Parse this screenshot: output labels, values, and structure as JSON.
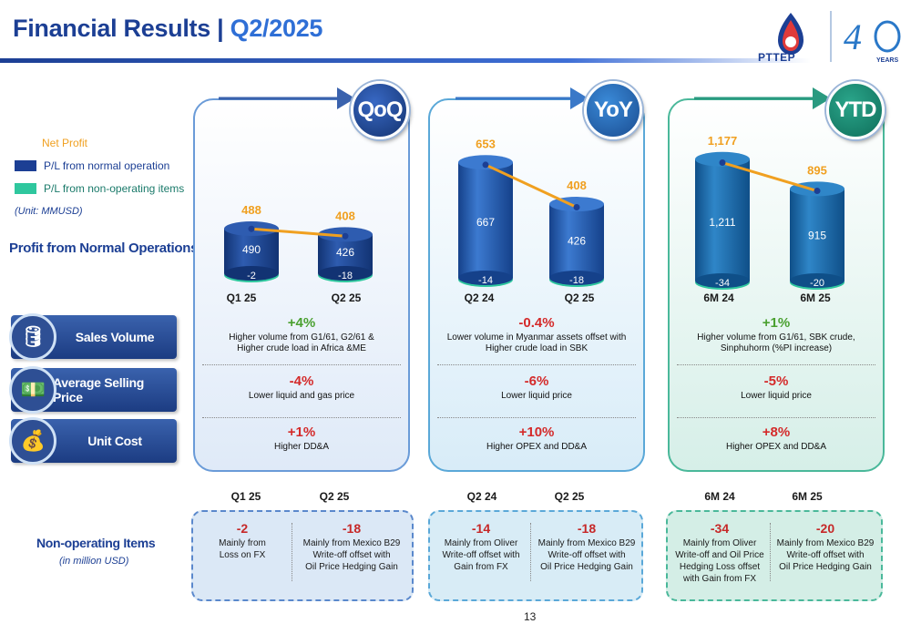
{
  "title": {
    "main": "Financial Results",
    "sep": " | ",
    "period": "Q2/2025"
  },
  "logo": {
    "company": "PTTEP",
    "years": "YEARS"
  },
  "legend": {
    "net_profit": "Net Profit",
    "normal": "P/L from normal operation",
    "non_operating": "P/L from non-operating items",
    "unit": "(Unit: MMUSD)"
  },
  "section_profit": "Profit from Normal Operations",
  "kpis": [
    "Sales Volume",
    "Average Selling Price",
    "Unit Cost"
  ],
  "panels": [
    {
      "badge": "QoQ",
      "periods": [
        "Q1 25",
        "Q2 25"
      ],
      "changes": [
        {
          "pct": "+4%",
          "line1": "Higher volume from G1/61, G2/61 &",
          "line2": "Higher crude load in Africa &ME"
        },
        {
          "pct": "-4%",
          "line1": "Lower liquid and gas price",
          "line2": ""
        },
        {
          "pct": "+1%",
          "line1": "Higher DD&A",
          "line2": ""
        }
      ],
      "non_op": [
        {
          "value": "-2",
          "lines": [
            "Mainly from",
            "Loss on FX"
          ]
        },
        {
          "value": "-18",
          "lines": [
            "Mainly from Mexico B29",
            "Write-off offset with",
            "Oil Price Hedging Gain"
          ]
        }
      ]
    },
    {
      "badge": "YoY",
      "periods": [
        "Q2 24",
        "Q2 25"
      ],
      "changes": [
        {
          "pct": "-0.4%",
          "line1": "Lower volume in Myanmar assets offset with",
          "line2": "Higher crude load in SBK"
        },
        {
          "pct": "-6%",
          "line1": "Lower liquid price",
          "line2": ""
        },
        {
          "pct": "+10%",
          "line1": "Higher OPEX and DD&A",
          "line2": ""
        }
      ],
      "non_op": [
        {
          "value": "-14",
          "lines": [
            "Mainly from Oliver",
            "Write-off offset with",
            "Gain from FX"
          ]
        },
        {
          "value": "-18",
          "lines": [
            "Mainly from Mexico B29",
            "Write-off offset with",
            "Oil Price Hedging Gain"
          ]
        }
      ]
    },
    {
      "badge": "YTD",
      "periods": [
        "6M 24",
        "6M 25"
      ],
      "changes": [
        {
          "pct": "+1%",
          "line1": "Higher volume from G1/61, SBK crude,",
          "line2": "Sinphuhorm (%PI increase)"
        },
        {
          "pct": "-5%",
          "line1": "Lower liquid price",
          "line2": ""
        },
        {
          "pct": "+8%",
          "line1": "Higher OPEX and DD&A",
          "line2": ""
        }
      ],
      "non_op": [
        {
          "value": "-34",
          "lines": [
            "Mainly from Oliver",
            "Write-off and Oil Price",
            "Hedging Loss offset",
            "with Gain from FX"
          ]
        },
        {
          "value": "-20",
          "lines": [
            "Mainly from Mexico B29",
            "Write-off offset with",
            "Oil Price Hedging Gain"
          ]
        }
      ]
    }
  ],
  "non_op_title": "Non-operating Items",
  "non_op_unit": "(in million USD)",
  "page_number": "13",
  "colors": {
    "navy": "#1c3f94",
    "orange": "#f0a020",
    "green": "#4aa030",
    "red": "#d42a2a",
    "teal": "#2fc79e"
  },
  "chart_data": [
    {
      "type": "bar",
      "title": "QoQ",
      "categories": [
        "Q1 25",
        "Q2 25"
      ],
      "series": [
        {
          "name": "P/L from normal operation",
          "values": [
            490,
            426
          ]
        },
        {
          "name": "P/L from non-operating items",
          "values": [
            -2,
            -18
          ]
        },
        {
          "name": "Net Profit",
          "values": [
            488,
            408
          ]
        }
      ]
    },
    {
      "type": "bar",
      "title": "YoY",
      "categories": [
        "Q2 24",
        "Q2 25"
      ],
      "series": [
        {
          "name": "P/L from normal operation",
          "values": [
            667,
            426
          ]
        },
        {
          "name": "P/L from non-operating items",
          "values": [
            -14,
            -18
          ]
        },
        {
          "name": "Net Profit",
          "values": [
            653,
            408
          ]
        }
      ]
    },
    {
      "type": "bar",
      "title": "YTD",
      "categories": [
        "6M 24",
        "6M 25"
      ],
      "series": [
        {
          "name": "P/L from normal operation",
          "values": [
            1211,
            915
          ]
        },
        {
          "name": "P/L from non-operating items",
          "values": [
            -34,
            -20
          ]
        },
        {
          "name": "Net Profit",
          "values": [
            1177,
            895
          ]
        }
      ]
    }
  ]
}
